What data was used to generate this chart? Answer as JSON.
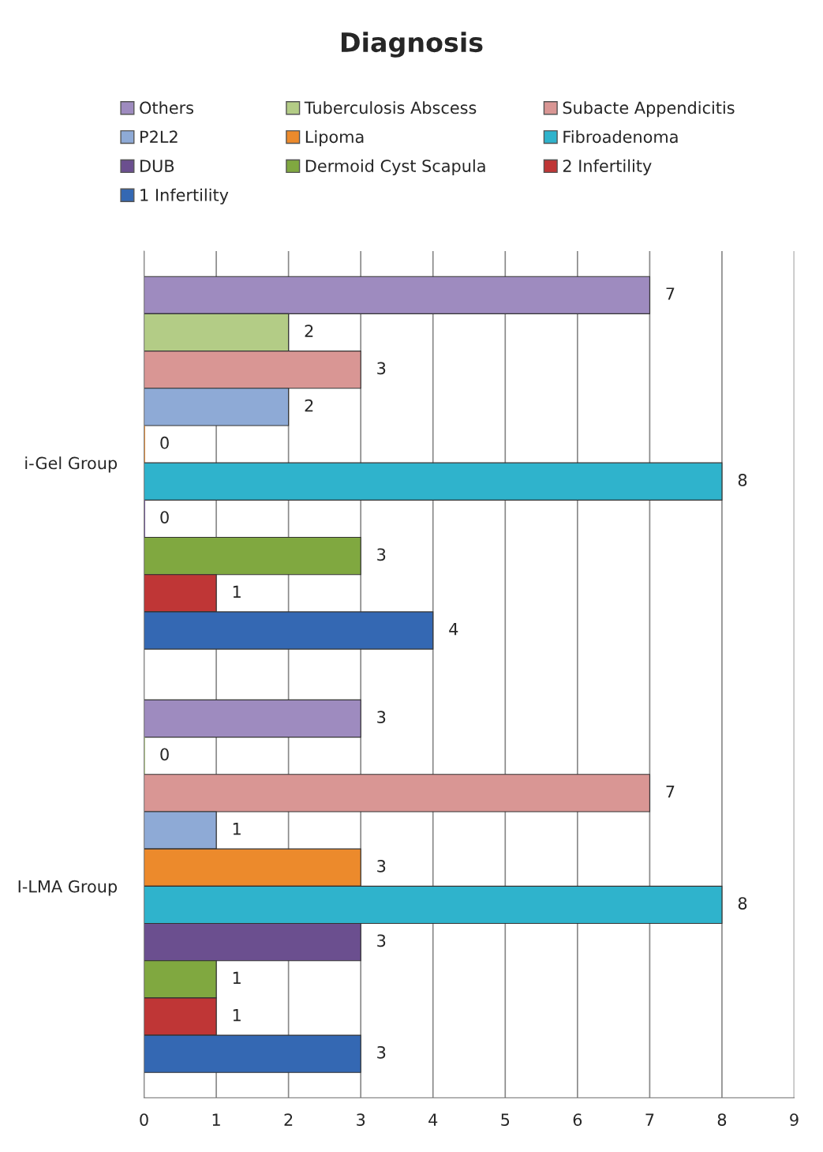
{
  "chart_data": {
    "type": "bar",
    "orientation": "horizontal",
    "title": "Diagnosis",
    "categories": [
      "i-Gel Group",
      "I-LMA Group"
    ],
    "series": [
      {
        "name": "Others",
        "color": "#9e8bbf",
        "values": [
          7,
          3
        ]
      },
      {
        "name": "Tuberculosis Abscess",
        "color": "#b3cc86",
        "values": [
          2,
          0
        ]
      },
      {
        "name": "Subacte Appendicitis",
        "color": "#d99694",
        "values": [
          3,
          7
        ]
      },
      {
        "name": "P2L2",
        "color": "#8eaad6",
        "values": [
          2,
          1
        ]
      },
      {
        "name": "Lipoma",
        "color": "#ec8a2c",
        "values": [
          0,
          3
        ]
      },
      {
        "name": "Fibroadenoma",
        "color": "#2fb3cc",
        "values": [
          8,
          8
        ]
      },
      {
        "name": "DUB",
        "color": "#6b4f8f",
        "values": [
          0,
          3
        ]
      },
      {
        "name": "Dermoid Cyst Scapula",
        "color": "#80a840",
        "values": [
          3,
          1
        ]
      },
      {
        "name": "2 Infertility",
        "color": "#bf3636",
        "values": [
          1,
          1
        ]
      },
      {
        "name": "1 Infertility",
        "color": "#3468b3",
        "values": [
          4,
          3
        ]
      }
    ],
    "xlim": [
      0,
      9
    ],
    "xticks": [
      0,
      1,
      2,
      3,
      4,
      5,
      6,
      7,
      8,
      9
    ],
    "grid": "x",
    "data_labels": true,
    "legend": "top"
  }
}
